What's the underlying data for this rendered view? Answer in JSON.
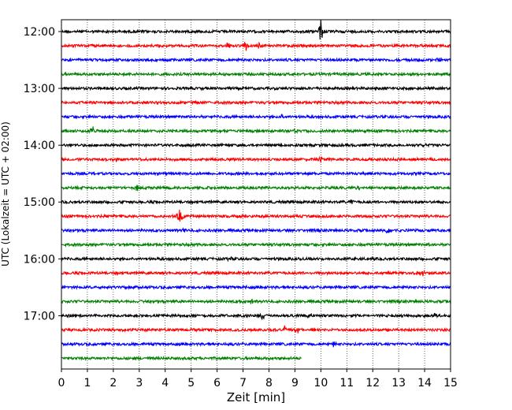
{
  "chart_data": {
    "type": "line",
    "xlabel": "Zeit  [min]",
    "ylabel": "UTC (Lokalzeit = UTC + 02:00)",
    "xlim": [
      0,
      15
    ],
    "x_ticks": [
      0,
      1,
      2,
      3,
      4,
      5,
      6,
      7,
      8,
      9,
      10,
      11,
      12,
      13,
      14,
      15
    ],
    "x_grid": "vertical dotted at each minute",
    "y_ticks": [
      {
        "trace": 0,
        "label": "12:00"
      },
      {
        "trace": 4,
        "label": "13:00"
      },
      {
        "trace": 8,
        "label": "14:00"
      },
      {
        "trace": 12,
        "label": "15:00"
      },
      {
        "trace": 16,
        "label": "16:00"
      },
      {
        "trace": 20,
        "label": "17:00"
      }
    ],
    "trace_interval_min": 15,
    "color_cycle": [
      "#000000",
      "#ff0000",
      "#0000ff",
      "#008000"
    ],
    "traces": [
      {
        "start": "12:00",
        "end_min": 15,
        "events": [
          {
            "t": 10.0,
            "amp": 18
          }
        ]
      },
      {
        "start": "12:15",
        "end_min": 15,
        "events": [
          {
            "t": 6.4,
            "amp": 6
          },
          {
            "t": 7.1,
            "amp": 7
          },
          {
            "t": 7.6,
            "amp": 9
          }
        ]
      },
      {
        "start": "12:30",
        "end_min": 15,
        "events": [
          {
            "t": 14.6,
            "amp": 6
          }
        ]
      },
      {
        "start": "12:45",
        "end_min": 15,
        "events": []
      },
      {
        "start": "13:00",
        "end_min": 15,
        "events": []
      },
      {
        "start": "13:15",
        "end_min": 15,
        "events": [
          {
            "t": 7.8,
            "amp": 3
          }
        ]
      },
      {
        "start": "13:30",
        "end_min": 15,
        "events": [
          {
            "t": 8.5,
            "amp": 3
          }
        ]
      },
      {
        "start": "13:45",
        "end_min": 15,
        "events": [
          {
            "t": 1.2,
            "amp": 7
          },
          {
            "t": 9.0,
            "amp": 3
          }
        ]
      },
      {
        "start": "14:00",
        "end_min": 15,
        "events": [
          {
            "t": 14.0,
            "amp": 3
          }
        ]
      },
      {
        "start": "14:15",
        "end_min": 15,
        "events": [
          {
            "t": 2.1,
            "amp": 4
          },
          {
            "t": 10.0,
            "amp": 3
          }
        ]
      },
      {
        "start": "14:30",
        "end_min": 15,
        "events": []
      },
      {
        "start": "14:45",
        "end_min": 15,
        "events": [
          {
            "t": 2.95,
            "amp": 6
          },
          {
            "t": 11.5,
            "amp": 3
          }
        ]
      },
      {
        "start": "15:00",
        "end_min": 15,
        "events": [
          {
            "t": 11.2,
            "amp": 4
          }
        ]
      },
      {
        "start": "15:15",
        "end_min": 15,
        "events": [
          {
            "t": 4.55,
            "amp": 15
          },
          {
            "t": 11.8,
            "amp": 3
          }
        ]
      },
      {
        "start": "15:30",
        "end_min": 15,
        "events": [
          {
            "t": 4.7,
            "amp": 4
          },
          {
            "t": 12.6,
            "amp": 7
          }
        ]
      },
      {
        "start": "15:45",
        "end_min": 15,
        "events": [
          {
            "t": 14.2,
            "amp": 3
          }
        ]
      },
      {
        "start": "16:00",
        "end_min": 15,
        "events": [
          {
            "t": 6.5,
            "amp": 3
          }
        ]
      },
      {
        "start": "16:15",
        "end_min": 15,
        "events": [
          {
            "t": 13.9,
            "amp": 7
          }
        ]
      },
      {
        "start": "16:30",
        "end_min": 15,
        "events": [
          {
            "t": 7.1,
            "amp": 3
          }
        ]
      },
      {
        "start": "16:45",
        "end_min": 15,
        "events": [
          {
            "t": 6.9,
            "amp": 4
          },
          {
            "t": 7.3,
            "amp": 5
          }
        ]
      },
      {
        "start": "17:00",
        "end_min": 15,
        "events": [
          {
            "t": 7.75,
            "amp": 7
          },
          {
            "t": 9.5,
            "amp": 4
          },
          {
            "t": 14.4,
            "amp": 4
          }
        ]
      },
      {
        "start": "17:15",
        "end_min": 15,
        "events": [
          {
            "t": 8.6,
            "amp": 5
          },
          {
            "t": 9.1,
            "amp": 4
          }
        ]
      },
      {
        "start": "17:30",
        "end_min": 15,
        "events": [
          {
            "t": 10.5,
            "amp": 5
          }
        ]
      },
      {
        "start": "17:45",
        "end_min": 9.25,
        "events": []
      }
    ]
  }
}
